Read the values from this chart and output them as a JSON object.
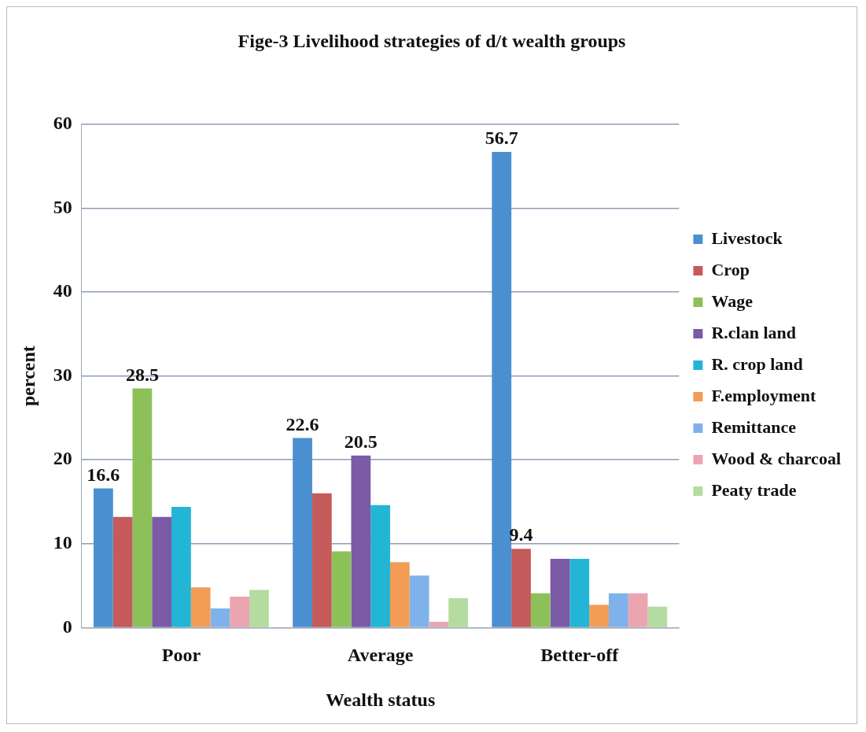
{
  "chart_data": {
    "type": "bar",
    "title": "Fige-3 Livelihood strategies of d/t wealth groups",
    "xlabel": "Wealth status",
    "ylabel": "percent",
    "categories": [
      "Poor",
      "Average",
      "Better-off"
    ],
    "series": [
      {
        "name": "Livestock",
        "color": "#4a8fd0",
        "values": [
          16.6,
          22.6,
          56.7
        ],
        "value_labels": [
          "16.6",
          "22.6",
          "56.7"
        ]
      },
      {
        "name": "Crop",
        "color": "#c55a5a",
        "values": [
          13.2,
          16,
          9.4
        ],
        "value_labels": [
          null,
          null,
          "9.4"
        ]
      },
      {
        "name": "Wage",
        "color": "#8cc15a",
        "values": [
          28.5,
          9.1,
          4.1
        ],
        "value_labels": [
          "28.5",
          null,
          null
        ]
      },
      {
        "name": "R.clan land",
        "color": "#7b5aa6",
        "values": [
          13.2,
          20.5,
          8.2
        ],
        "value_labels": [
          null,
          "20.5",
          null
        ]
      },
      {
        "name": "R. crop land",
        "color": "#22b5d6",
        "values": [
          14.4,
          14.6,
          8.2
        ]
      },
      {
        "name": "F.employment",
        "color": "#f29c56",
        "values": [
          4.8,
          7.8,
          2.7
        ]
      },
      {
        "name": "Remittance",
        "color": "#7fb2ea",
        "values": [
          2.3,
          6.2,
          4.1
        ]
      },
      {
        "name": "Wood & charcoal",
        "color": "#eaa5b0",
        "values": [
          3.7,
          0.7,
          4.1
        ]
      },
      {
        "name": "Peaty trade",
        "color": "#b5dca0",
        "values": [
          4.5,
          3.5,
          2.5
        ]
      }
    ],
    "ylim": [
      0,
      60
    ],
    "yticks": [
      0,
      10,
      20,
      30,
      40,
      50,
      60
    ],
    "grid": "y",
    "legend": "right"
  }
}
